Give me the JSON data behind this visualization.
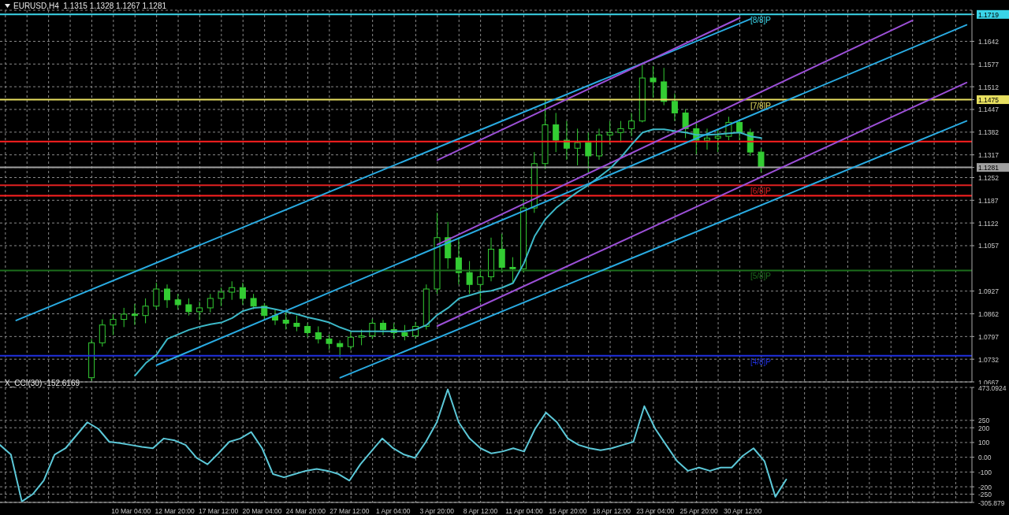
{
  "chart_data": [
    {
      "type": "candlestick",
      "title": "EURUSD,H4  1.1315 1.1328 1.1267 1.1281",
      "categories": [
        null,
        null,
        null,
        null,
        null,
        null,
        null,
        null,
        null,
        null,
        null,
        null,
        null,
        null,
        null,
        null,
        null,
        null,
        null,
        null,
        null,
        null,
        null,
        null,
        null,
        null,
        null,
        null,
        null,
        null,
        null,
        null,
        null,
        null,
        null,
        null,
        null,
        null,
        null,
        null,
        null,
        null,
        null,
        null,
        null,
        null,
        null,
        null,
        null,
        null,
        null,
        null,
        null,
        null,
        null,
        null,
        null,
        null,
        null,
        null,
        null,
        null,
        null,
        null,
        null,
        null,
        null,
        null,
        null,
        null,
        null,
        null,
        null,
        null,
        null,
        null,
        null,
        null,
        null,
        null,
        null,
        null,
        null,
        null,
        null,
        null,
        null,
        null,
        null,
        null
      ],
      "ohlc": [
        null,
        null,
        null,
        null,
        null,
        null,
        null,
        null,
        [
          1.0679,
          1.079,
          1.067,
          1.0779
        ],
        [
          1.0779,
          1.0846,
          1.0768,
          1.083
        ],
        [
          1.083,
          1.0861,
          1.0801,
          1.0846
        ],
        [
          1.0846,
          1.0879,
          1.0824,
          1.0861
        ],
        [
          1.0861,
          1.089,
          1.083,
          1.0857
        ],
        [
          1.0857,
          1.0906,
          1.0835,
          1.0884
        ],
        [
          1.0884,
          1.0951,
          1.0875,
          1.0933
        ],
        [
          1.0933,
          1.0946,
          1.0879,
          1.0902
        ],
        [
          1.0902,
          1.0919,
          1.0875,
          1.0888
        ],
        [
          1.0888,
          1.0906,
          1.0857,
          1.0868
        ],
        [
          1.0868,
          1.0897,
          1.0844,
          1.0879
        ],
        [
          1.0879,
          1.0919,
          1.0866,
          1.0906
        ],
        [
          1.0906,
          1.0937,
          1.0884,
          1.0924
        ],
        [
          1.0924,
          1.0955,
          1.0902,
          1.0937
        ],
        [
          1.0937,
          1.0951,
          1.0888,
          1.0906
        ],
        [
          1.0906,
          1.0919,
          1.0875,
          1.0884
        ],
        [
          1.0884,
          1.0893,
          1.0844,
          1.0857
        ],
        [
          1.0857,
          1.0875,
          1.083,
          1.0844
        ],
        [
          1.0844,
          1.0866,
          1.0817,
          1.0835
        ],
        [
          1.0835,
          1.0857,
          1.0812,
          1.0826
        ],
        [
          1.0826,
          1.0835,
          1.0795,
          1.0808
        ],
        [
          1.0808,
          1.0826,
          1.0777,
          1.079
        ],
        [
          1.079,
          1.0803,
          1.0759,
          1.0777
        ],
        [
          1.0777,
          1.0786,
          1.0737,
          1.0768
        ],
        [
          1.0768,
          1.0812,
          1.0759,
          1.0795
        ],
        [
          1.0795,
          1.0817,
          1.0772,
          1.0799
        ],
        [
          1.0799,
          1.0848,
          1.079,
          1.0835
        ],
        [
          1.0835,
          1.0844,
          1.0801,
          1.0817
        ],
        [
          1.0817,
          1.0835,
          1.079,
          1.0808
        ],
        [
          1.0808,
          1.083,
          1.0786,
          1.0799
        ],
        [
          1.0799,
          1.0839,
          1.079,
          1.0826
        ],
        [
          1.0826,
          1.0946,
          1.0817,
          1.0933
        ],
        [
          1.0933,
          1.1151,
          1.0919,
          1.108
        ],
        [
          1.108,
          1.1125,
          1.0991,
          1.1022
        ],
        [
          1.1022,
          1.108,
          1.0946,
          1.098
        ],
        [
          1.098,
          1.1013,
          1.0919,
          1.0946
        ],
        [
          1.0946,
          1.0991,
          1.0895,
          1.0968
        ],
        [
          1.0968,
          1.108,
          1.0955,
          1.1047
        ],
        [
          1.1047,
          1.1091,
          1.098,
          1.0995
        ],
        [
          1.0995,
          1.1024,
          1.0951,
          1.0991
        ],
        [
          1.0991,
          1.1191,
          1.098,
          1.1165
        ],
        [
          1.1165,
          1.1325,
          1.1151,
          1.1292
        ],
        [
          1.1292,
          1.1475,
          1.1276,
          1.1403
        ],
        [
          1.1403,
          1.1437,
          1.1325,
          1.1359
        ],
        [
          1.1359,
          1.1414,
          1.1303,
          1.1336
        ],
        [
          1.1336,
          1.1392,
          1.1287,
          1.1352
        ],
        [
          1.1352,
          1.1381,
          1.1265,
          1.1314
        ],
        [
          1.1314,
          1.1392,
          1.1303,
          1.1374
        ],
        [
          1.1374,
          1.1414,
          1.1348,
          1.1381
        ],
        [
          1.1381,
          1.1414,
          1.1352,
          1.1392
        ],
        [
          1.1392,
          1.1437,
          1.137,
          1.1414
        ],
        [
          1.1414,
          1.1575,
          1.141,
          1.1537
        ],
        [
          1.1537,
          1.1571,
          1.1481,
          1.1526
        ],
        [
          1.1526,
          1.1566,
          1.1459,
          1.147
        ],
        [
          1.147,
          1.1493,
          1.1414,
          1.1437
        ],
        [
          1.1437,
          1.1448,
          1.1365,
          1.1392
        ],
        [
          1.1392,
          1.1414,
          1.1319,
          1.1359
        ],
        [
          1.1359,
          1.1392,
          1.1332,
          1.1365
        ],
        [
          1.1365,
          1.1392,
          1.1325,
          1.137
        ],
        [
          1.137,
          1.1426,
          1.1359,
          1.141
        ],
        [
          1.141,
          1.1419,
          1.1359,
          1.1381
        ],
        [
          1.1381,
          1.1392,
          1.1314,
          1.1325
        ],
        [
          1.1325,
          1.1336,
          1.1267,
          1.1281
        ],
        null,
        null,
        null,
        null,
        null,
        null,
        null,
        null,
        null,
        null,
        null,
        null,
        null,
        null,
        null,
        null,
        null,
        null,
        null
      ],
      "color": "#33cc33",
      "series": [
        {
          "type": "line",
          "color": "#3cb8c8",
          "values": [
            null,
            null,
            null,
            null,
            null,
            null,
            null,
            null,
            null,
            null,
            null,
            null,
            1.0685,
            1.0721,
            1.0745,
            1.079,
            1.0803,
            1.0816,
            1.0825,
            1.0832,
            1.0837,
            1.085,
            1.087,
            1.0879,
            1.0881,
            1.0875,
            1.0868,
            1.0861,
            1.0852,
            1.0845,
            1.0837,
            1.0823,
            1.0812,
            1.0812,
            1.0812,
            1.0812,
            1.0812,
            1.0812,
            1.0817,
            1.083,
            1.0859,
            1.0879,
            1.0906,
            1.0915,
            1.0924,
            1.0928,
            1.0937,
            1.095,
            1.1006,
            1.1084,
            1.1133,
            1.1165,
            1.1189,
            1.1211,
            1.1231,
            1.1254,
            1.1278,
            1.131,
            1.1347,
            1.1381,
            1.139,
            1.139,
            1.1385,
            1.1381,
            1.1374,
            1.1374,
            1.1376,
            1.1379,
            1.1381,
            1.137,
            1.1365,
            null,
            null,
            null,
            null,
            null,
            null,
            null,
            null,
            null,
            null,
            null,
            null,
            null,
            null,
            null,
            null,
            null,
            null,
            null
          ]
        },
        {
          "type": "line",
          "color": "#29abe2",
          "values": [
            null,
            1.0843,
            null,
            null,
            null,
            null,
            null,
            null,
            null,
            null,
            null,
            null,
            null,
            null,
            null,
            null,
            null,
            null,
            null,
            null,
            null,
            null,
            null,
            null,
            null,
            null,
            null,
            null,
            null,
            null,
            null,
            null,
            null,
            null,
            null,
            null,
            null,
            null,
            null,
            null,
            null,
            null,
            null,
            null,
            null,
            null,
            null,
            null,
            null,
            null,
            null,
            null,
            null,
            null,
            null,
            null,
            null,
            null,
            null,
            null,
            null,
            null,
            null,
            null,
            null,
            null,
            null,
            null,
            null,
            1.1706,
            null,
            null,
            null,
            null,
            null,
            null,
            null,
            null,
            null,
            null,
            null,
            null,
            null,
            null,
            null,
            null,
            null,
            null,
            null,
            null
          ]
        },
        {
          "type": "line",
          "color": "#29abe2",
          "values": [
            null,
            null,
            null,
            null,
            null,
            null,
            null,
            null,
            null,
            null,
            null,
            null,
            null,
            null,
            1.0715,
            null,
            null,
            null,
            null,
            null,
            null,
            null,
            null,
            null,
            null,
            null,
            null,
            null,
            null,
            null,
            null,
            null,
            null,
            null,
            null,
            null,
            null,
            null,
            null,
            null,
            null,
            null,
            null,
            null,
            null,
            null,
            null,
            null,
            null,
            null,
            null,
            null,
            null,
            null,
            null,
            null,
            null,
            null,
            null,
            null,
            null,
            null,
            null,
            null,
            null,
            null,
            null,
            null,
            null,
            null,
            null,
            null,
            null,
            null,
            null,
            null,
            null,
            null,
            null,
            null,
            null,
            null,
            null,
            null,
            null,
            null,
            null,
            null,
            null,
            1.1689
          ]
        },
        {
          "type": "line",
          "color": "#29abe2",
          "values": [
            null,
            null,
            null,
            null,
            null,
            null,
            null,
            null,
            null,
            null,
            null,
            null,
            null,
            null,
            null,
            null,
            null,
            null,
            null,
            null,
            null,
            null,
            null,
            null,
            null,
            null,
            null,
            null,
            null,
            null,
            null,
            1.0679,
            null,
            null,
            null,
            null,
            null,
            null,
            null,
            null,
            null,
            null,
            null,
            null,
            null,
            null,
            null,
            null,
            null,
            null,
            null,
            null,
            null,
            null,
            null,
            null,
            null,
            null,
            null,
            null,
            null,
            null,
            null,
            null,
            null,
            null,
            null,
            null,
            null,
            null,
            null,
            null,
            null,
            null,
            null,
            null,
            null,
            null,
            null,
            null,
            null,
            null,
            null,
            null,
            null,
            null,
            null,
            null,
            null,
            1.1414
          ]
        },
        {
          "type": "line",
          "color": "#9b4fd6",
          "values": [
            null,
            null,
            null,
            null,
            null,
            null,
            null,
            null,
            null,
            null,
            null,
            null,
            null,
            null,
            null,
            null,
            null,
            null,
            null,
            null,
            null,
            null,
            null,
            null,
            null,
            null,
            null,
            null,
            null,
            null,
            null,
            null,
            null,
            null,
            null,
            null,
            null,
            null,
            null,
            null,
            1.1302,
            null,
            null,
            null,
            null,
            null,
            null,
            null,
            null,
            null,
            null,
            null,
            null,
            null,
            null,
            null,
            null,
            null,
            null,
            null,
            null,
            null,
            null,
            null,
            null,
            null,
            null,
            null,
            1.1709,
            null,
            null,
            null,
            null,
            null,
            null,
            null,
            null,
            null,
            null,
            null,
            null,
            null,
            null,
            null,
            null,
            null,
            null,
            null,
            null,
            null
          ]
        },
        {
          "type": "line",
          "color": "#9b4fd6",
          "values": [
            null,
            null,
            null,
            null,
            null,
            null,
            null,
            null,
            null,
            null,
            null,
            null,
            null,
            null,
            null,
            null,
            null,
            null,
            null,
            null,
            null,
            null,
            null,
            null,
            null,
            null,
            null,
            null,
            null,
            null,
            null,
            null,
            null,
            null,
            null,
            null,
            null,
            null,
            null,
            null,
            1.106,
            null,
            null,
            null,
            null,
            null,
            null,
            null,
            null,
            null,
            null,
            null,
            null,
            null,
            null,
            null,
            null,
            null,
            null,
            null,
            null,
            null,
            null,
            null,
            null,
            null,
            null,
            null,
            null,
            null,
            null,
            null,
            null,
            null,
            null,
            null,
            null,
            null,
            null,
            null,
            null,
            null,
            null,
            null,
            1.1702,
            null,
            null,
            null,
            null,
            null
          ]
        },
        {
          "type": "line",
          "color": "#9b4fd6",
          "values": [
            null,
            null,
            null,
            null,
            null,
            null,
            null,
            null,
            null,
            null,
            null,
            null,
            null,
            null,
            null,
            null,
            null,
            null,
            null,
            null,
            null,
            null,
            null,
            null,
            null,
            null,
            null,
            null,
            null,
            null,
            null,
            null,
            null,
            null,
            null,
            null,
            null,
            null,
            null,
            null,
            1.0827,
            null,
            null,
            null,
            null,
            null,
            null,
            null,
            null,
            null,
            null,
            null,
            null,
            null,
            null,
            null,
            null,
            null,
            null,
            null,
            null,
            null,
            null,
            null,
            null,
            null,
            null,
            null,
            null,
            null,
            null,
            null,
            null,
            null,
            null,
            null,
            null,
            null,
            null,
            null,
            null,
            null,
            null,
            null,
            null,
            null,
            null,
            null,
            null,
            1.1524
          ]
        }
      ],
      "ylim": [
        1.0667,
        1.1731
      ],
      "yticks": [
        1.1719,
        1.1642,
        1.1577,
        1.1512,
        1.1475,
        1.1447,
        1.1382,
        1.1317,
        1.1281,
        1.1252,
        1.1187,
        1.1122,
        1.1057,
        1.0927,
        1.0862,
        1.0797,
        1.0732,
        1.0667
      ],
      "grid": true,
      "tick_labels": "y",
      "ref_lines": [
        {
          "axis": "y",
          "value": 1.1719,
          "label": "[8/8]P",
          "color": "#3ad4e8"
        },
        {
          "axis": "y",
          "value": 1.1475,
          "label": "[7/8]P",
          "color": "#e8e060"
        },
        {
          "axis": "y",
          "value": 1.1355,
          "color": "#ff2020"
        },
        {
          "axis": "y",
          "value": 1.1281,
          "color": "#a0a0a0"
        },
        {
          "axis": "y",
          "value": 1.123,
          "label": "[6/8]P",
          "color": "#e02020"
        },
        {
          "axis": "y",
          "value": 1.12,
          "color": "#ff2020"
        },
        {
          "axis": "y",
          "value": 1.0986,
          "label": "[5/8]P",
          "color": "#1c6e1c"
        },
        {
          "axis": "y",
          "value": 1.0742,
          "label": "[4/8]P",
          "color": "#2030e0"
        }
      ]
    },
    {
      "type": "line",
      "title": "X_CCI(30) -152.6169",
      "categories": [
        null,
        null,
        null,
        null,
        null,
        null,
        null,
        null,
        null,
        null,
        null,
        null,
        "10 Mar 04:00",
        null,
        null,
        null,
        "12 Mar 20:00",
        null,
        null,
        null,
        "17 Mar 12:00",
        null,
        null,
        null,
        "20 Mar 04:00",
        null,
        null,
        null,
        "24 Mar 20:00",
        null,
        null,
        null,
        "27 Mar 12:00",
        null,
        null,
        null,
        "1 Apr 04:00",
        null,
        null,
        null,
        "3 Apr 20:00",
        null,
        null,
        null,
        "8 Apr 12:00",
        null,
        null,
        null,
        "11 Apr 04:00",
        null,
        null,
        null,
        "15 Apr 20:00",
        null,
        null,
        null,
        "18 Apr 12:00",
        null,
        null,
        null,
        "23 Apr 04:00",
        null,
        null,
        null,
        "25 Apr 20:00",
        null,
        null,
        null,
        "30 Apr 12:00",
        null,
        null,
        null,
        null,
        null,
        null,
        null,
        null,
        null,
        null,
        null,
        null,
        null,
        null,
        null,
        null,
        null,
        null,
        null,
        null,
        null
      ],
      "values": [
        83,
        18,
        -300,
        -250,
        -158,
        18,
        61,
        149,
        237,
        193,
        105,
        96,
        83,
        70,
        61,
        127,
        114,
        83,
        -4,
        -48,
        26,
        105,
        127,
        171,
        61,
        -114,
        -136,
        -114,
        -92,
        -79,
        -92,
        -114,
        -158,
        -48,
        40,
        127,
        61,
        18,
        -4,
        105,
        237,
        460,
        237,
        127,
        61,
        26,
        39,
        61,
        39,
        193,
        303,
        237,
        127,
        83,
        61,
        48,
        61,
        83,
        105,
        346,
        193,
        83,
        -26,
        -92,
        -70,
        -92,
        -70,
        -70,
        9,
        61,
        -26,
        -268,
        -150,
        null,
        null,
        null,
        null,
        null,
        null,
        null,
        null,
        null,
        null,
        null,
        null,
        null,
        null,
        null,
        null,
        null
      ],
      "color": "#5cc8d8",
      "ylim": [
        -305.879,
        473.0924
      ],
      "yticks": [
        473.0924,
        250,
        200,
        100,
        {
          "value": 0,
          "label": "0.00"
        },
        -100,
        -200,
        -250,
        -305.879
      ],
      "grid": true
    }
  ]
}
